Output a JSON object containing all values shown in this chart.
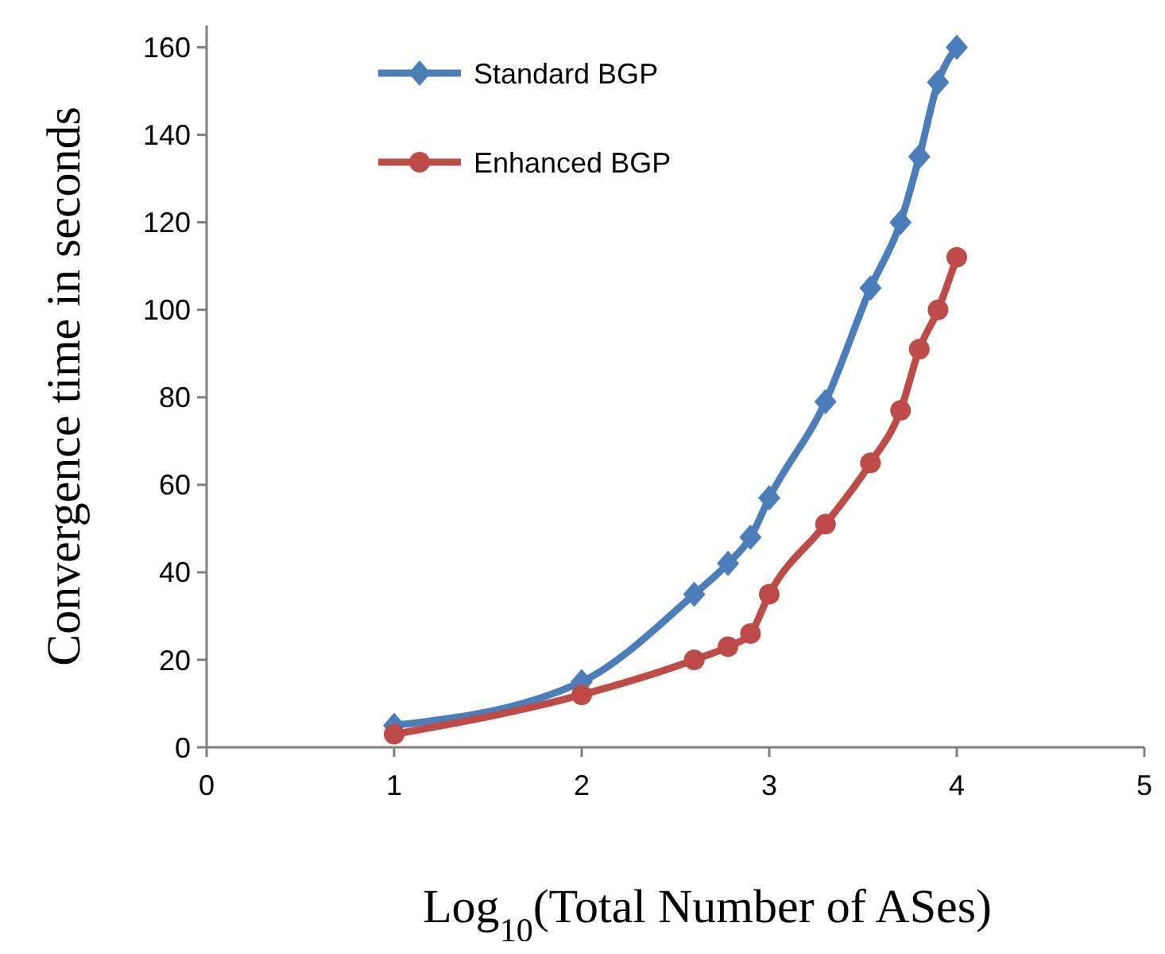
{
  "chart_data": {
    "type": "line",
    "xlabel": "Log$_{10}$(Total Number of ASes)",
    "ylabel": "Convergence time in seconds",
    "xlim": [
      0,
      5
    ],
    "xticks": [
      0,
      1,
      2,
      3,
      4,
      5
    ],
    "ylim": [
      0,
      165
    ],
    "yticks": [
      0,
      20,
      40,
      60,
      80,
      100,
      120,
      140,
      160
    ],
    "grid": false,
    "legend": "top left",
    "line_style": "solid",
    "series": [
      {
        "name": "Standard BGP",
        "color": "#4a7ebb",
        "marker": "diamond",
        "x": [
          1,
          2,
          2.6,
          2.78,
          2.9,
          3,
          3.3,
          3.54,
          3.7,
          3.8,
          3.9,
          4
        ],
        "values": [
          5,
          15,
          35,
          42,
          48,
          57,
          79,
          105,
          120,
          135,
          152,
          160
        ]
      },
      {
        "name": "Enhanced BGP",
        "color": "#be4b48",
        "marker": "circle",
        "x": [
          1,
          2,
          2.6,
          2.78,
          2.9,
          3,
          3.3,
          3.54,
          3.7,
          3.8,
          3.9,
          4
        ],
        "values": [
          3,
          12,
          20,
          23,
          26,
          35,
          51,
          65,
          77,
          91,
          100,
          112
        ]
      }
    ]
  }
}
